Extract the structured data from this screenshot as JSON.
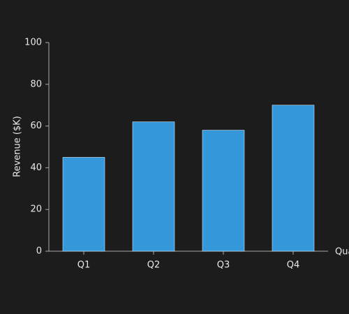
{
  "chart_data": {
    "type": "bar",
    "categories": [
      "Q1",
      "Q2",
      "Q3",
      "Q4"
    ],
    "values": [
      45,
      62,
      58,
      70
    ],
    "color": "#3498db",
    "ylabel": "Revenue ($K)",
    "xlabel": "Quarter",
    "ylim": [
      0,
      100
    ],
    "yticks": [
      0,
      20,
      40,
      60,
      80,
      100
    ]
  }
}
